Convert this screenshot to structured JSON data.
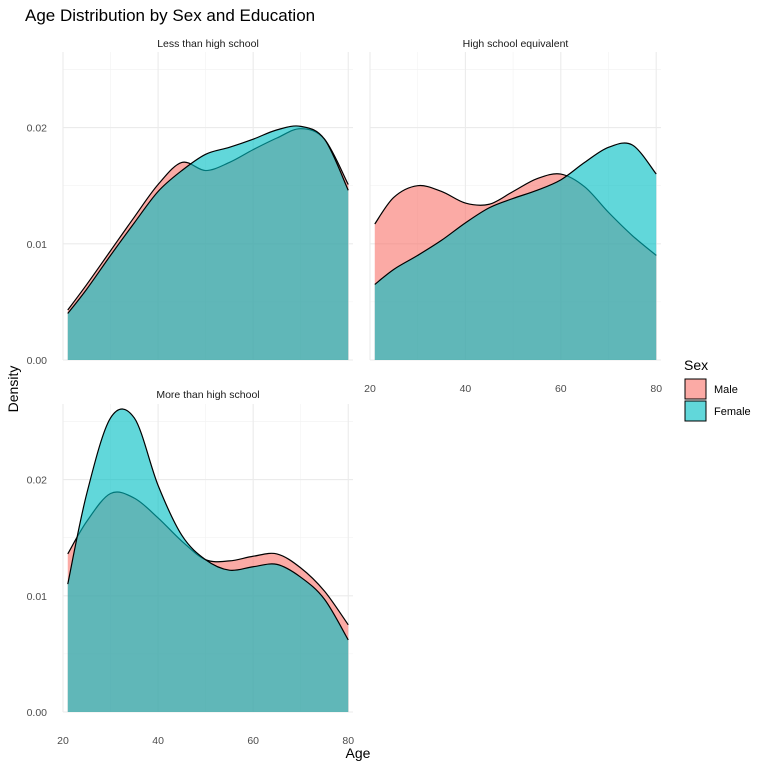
{
  "chart_data": {
    "type": "area",
    "title": "Age Distribution by Sex and Education",
    "xlabel": "Age",
    "ylabel": "Density",
    "xlim": [
      20,
      81
    ],
    "ylim": [
      0,
      0.0265
    ],
    "x_ticks": [
      20,
      40,
      60,
      80
    ],
    "y_ticks": [
      0.0,
      0.01,
      0.02
    ],
    "y_tick_labels": [
      "0.00",
      "0.01",
      "0.02"
    ],
    "grid": true,
    "legend": {
      "title": "Sex",
      "placement": "right",
      "entries": [
        {
          "name": "Male",
          "color": "#F8766D"
        },
        {
          "name": "Female",
          "color": "#00BFC4"
        }
      ]
    },
    "fill_opacity": 0.62,
    "x": [
      21,
      25,
      30,
      35,
      40,
      45,
      50,
      55,
      60,
      65,
      70,
      75,
      80
    ],
    "panels": [
      {
        "title": "Less than high school",
        "series": [
          {
            "name": "Male",
            "values": [
              0.0043,
              0.0065,
              0.0094,
              0.0123,
              0.0151,
              0.017,
              0.0163,
              0.017,
              0.0181,
              0.0191,
              0.0199,
              0.019,
              0.0151
            ]
          },
          {
            "name": "Female",
            "values": [
              0.004,
              0.0061,
              0.009,
              0.0118,
              0.0145,
              0.0163,
              0.0177,
              0.0183,
              0.019,
              0.0198,
              0.0201,
              0.019,
              0.0146
            ]
          }
        ]
      },
      {
        "title": "High school equivalent",
        "series": [
          {
            "name": "Male",
            "values": [
              0.0117,
              0.014,
              0.015,
              0.0145,
              0.0135,
              0.0134,
              0.0145,
              0.0156,
              0.016,
              0.0149,
              0.0127,
              0.0107,
              0.009
            ]
          },
          {
            "name": "Female",
            "values": [
              0.0065,
              0.0078,
              0.009,
              0.0103,
              0.0118,
              0.0131,
              0.0139,
              0.0146,
              0.0155,
              0.017,
              0.0183,
              0.0185,
              0.016
            ]
          }
        ]
      },
      {
        "title": "More than high school",
        "series": [
          {
            "name": "Male",
            "values": [
              0.0136,
              0.0164,
              0.0188,
              0.0184,
              0.0167,
              0.0147,
              0.0131,
              0.013,
              0.0134,
              0.0136,
              0.0124,
              0.0104,
              0.0075
            ]
          },
          {
            "name": "Female",
            "values": [
              0.011,
              0.0188,
              0.0253,
              0.0253,
              0.0195,
              0.0152,
              0.0131,
              0.0122,
              0.0125,
              0.0127,
              0.0116,
              0.0097,
              0.0062
            ]
          }
        ]
      }
    ]
  }
}
